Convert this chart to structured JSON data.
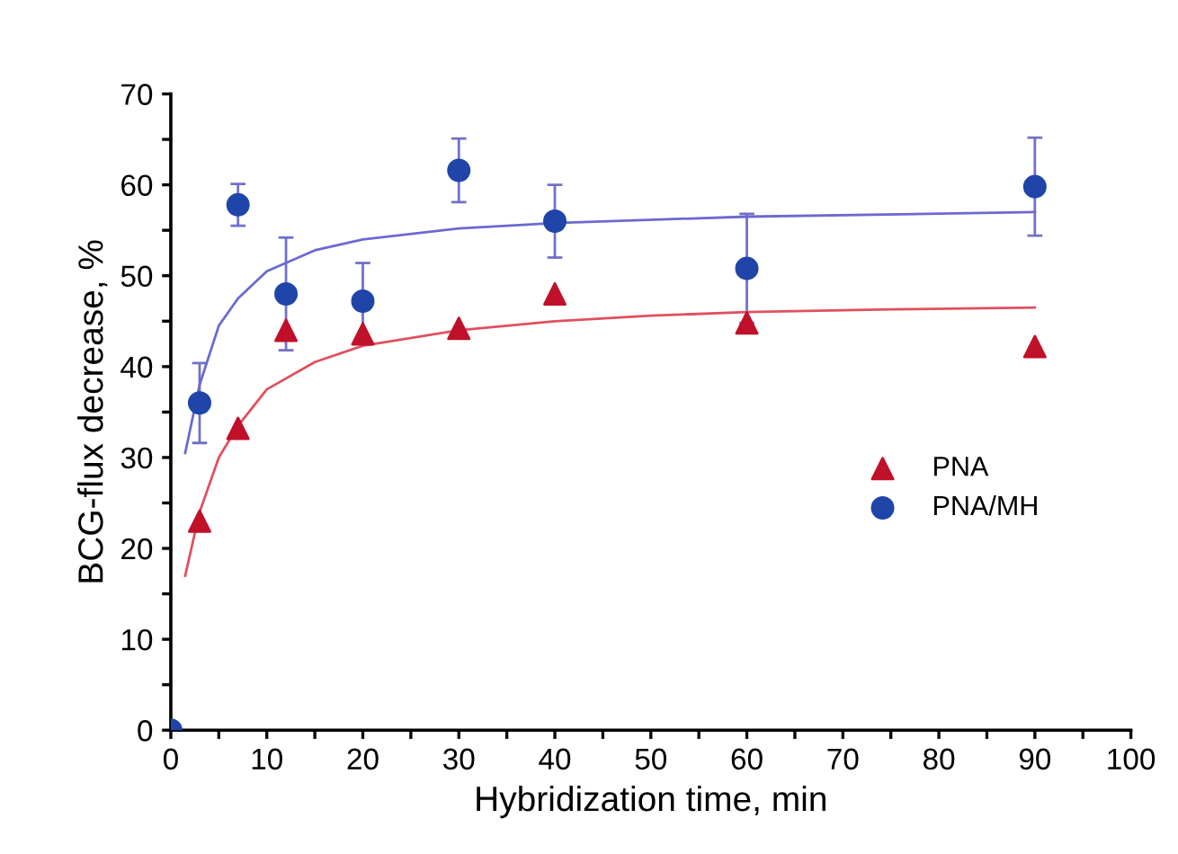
{
  "chart_data": {
    "type": "scatter",
    "xlabel": "Hybridization time, min",
    "ylabel": "BCG-flux decrease, %",
    "xlim": [
      0,
      100
    ],
    "ylim": [
      0,
      70
    ],
    "xticks": [
      0,
      {
        "value": 5,
        "label": null
      },
      10,
      {
        "value": 15,
        "label": null
      },
      20,
      {
        "value": 25,
        "label": null
      },
      30,
      {
        "value": 35,
        "label": null
      },
      40,
      {
        "value": 45,
        "label": null
      },
      50,
      {
        "value": 55,
        "label": null
      },
      60,
      {
        "value": 65,
        "label": null
      },
      70,
      {
        "value": 75,
        "label": null
      },
      80,
      {
        "value": 85,
        "label": null
      },
      90,
      {
        "value": 95,
        "label": null
      },
      100
    ],
    "yticks": [
      0,
      {
        "value": 5,
        "label": null
      },
      10,
      {
        "value": 15,
        "label": null
      },
      20,
      {
        "value": 25,
        "label": null
      },
      30,
      {
        "value": 35,
        "label": null
      },
      40,
      {
        "value": 45,
        "label": null
      },
      50,
      {
        "value": 55,
        "label": null
      },
      60,
      {
        "value": 65,
        "label": null
      },
      70
    ],
    "grid": false,
    "legend": "right",
    "series": [
      {
        "name": "PNA",
        "marker": "triangle",
        "color": "#c0102a",
        "x": [
          3,
          7,
          12,
          20,
          30,
          40,
          60,
          90
        ],
        "values": [
          23,
          33.2,
          44,
          43.6,
          44.2,
          48,
          44.8,
          42.2
        ]
      },
      {
        "name": "PNA/MH",
        "marker": "circle",
        "color": "#1f45a8",
        "x": [
          0,
          3,
          7,
          12,
          20,
          30,
          40,
          60,
          90
        ],
        "values": [
          0,
          36,
          57.8,
          48,
          47.2,
          61.6,
          56,
          50.8,
          59.8
        ],
        "errors": [
          null,
          4.4,
          2.3,
          6.2,
          4.2,
          3.5,
          4,
          6,
          5.4
        ]
      },
      {
        "type": "line",
        "marker": "none",
        "line_style": "solid",
        "color": "#e05060",
        "x": [
          1.5,
          3,
          5,
          7,
          10,
          15,
          20,
          30,
          40,
          50,
          60,
          75,
          90
        ],
        "values": [
          17,
          24,
          30,
          33.5,
          37.5,
          40.5,
          42.3,
          44,
          45,
          45.6,
          46,
          46.3,
          46.5
        ]
      },
      {
        "type": "line",
        "marker": "none",
        "line_style": "solid",
        "color": "#6a6ad0",
        "x": [
          1.5,
          3,
          5,
          7,
          10,
          15,
          20,
          30,
          40,
          60,
          90
        ],
        "values": [
          30.5,
          38,
          44.5,
          47.5,
          50.5,
          52.8,
          54,
          55.2,
          55.8,
          56.5,
          57
        ]
      }
    ]
  }
}
